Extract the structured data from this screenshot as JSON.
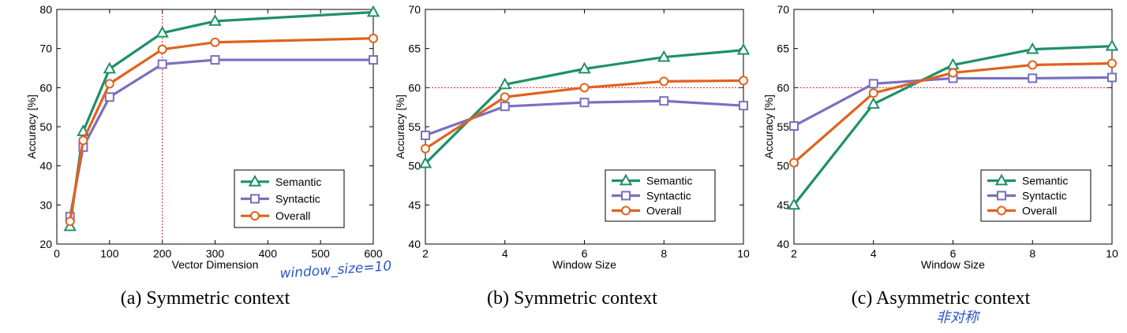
{
  "colors": {
    "semantic": "#1e9068",
    "syntactic": "#7a6fc0",
    "overall": "#e0621e",
    "reference": "#c0262c",
    "handwriting": "#2a58c8"
  },
  "chart_data": [
    {
      "type": "line",
      "caption": "(a) Symmetric context",
      "xlabel": "Vector Dimension",
      "ylabel": "Accuracy [%]",
      "xlim": [
        0,
        600
      ],
      "ylim": [
        20,
        80
      ],
      "xticks": [
        0,
        100,
        200,
        300,
        400,
        500,
        600
      ],
      "yticks": [
        20,
        30,
        40,
        50,
        60,
        70,
        80
      ],
      "grid": false,
      "legend_position": "lower-right",
      "reference_lines": {
        "x": 200,
        "y": null
      },
      "annotation": "window_size=10",
      "x": [
        25,
        50,
        100,
        200,
        300,
        600
      ],
      "series": [
        {
          "name": "Semantic",
          "marker": "triangle",
          "values": [
            24.5,
            48.8,
            64.8,
            74.0,
            77.0,
            79.3
          ]
        },
        {
          "name": "Syntactic",
          "marker": "square",
          "values": [
            27.0,
            44.8,
            57.6,
            66.0,
            67.1,
            67.1
          ]
        },
        {
          "name": "Overall",
          "marker": "circle",
          "values": [
            25.8,
            46.5,
            61.0,
            69.8,
            71.6,
            72.6
          ]
        }
      ]
    },
    {
      "type": "line",
      "caption": "(b) Symmetric context",
      "xlabel": "Window Size",
      "ylabel": "Accuracy [%]",
      "xlim": [
        2,
        10
      ],
      "ylim": [
        40,
        70
      ],
      "xticks": [
        2,
        4,
        6,
        8,
        10
      ],
      "yticks": [
        40,
        45,
        50,
        55,
        60,
        65,
        70
      ],
      "grid": false,
      "legend_position": "lower-right",
      "reference_lines": {
        "x": null,
        "y": 60
      },
      "annotation": "",
      "x": [
        2,
        4,
        6,
        8,
        10
      ],
      "series": [
        {
          "name": "Semantic",
          "marker": "triangle",
          "values": [
            50.3,
            60.4,
            62.4,
            63.9,
            64.8
          ]
        },
        {
          "name": "Syntactic",
          "marker": "square",
          "values": [
            53.9,
            57.6,
            58.1,
            58.3,
            57.7
          ]
        },
        {
          "name": "Overall",
          "marker": "circle",
          "values": [
            52.2,
            58.8,
            60.0,
            60.8,
            60.9
          ]
        }
      ]
    },
    {
      "type": "line",
      "caption": "(c) Asymmetric context",
      "xlabel": "Window Size",
      "ylabel": "Accuracy [%]",
      "xlim": [
        2,
        10
      ],
      "ylim": [
        40,
        70
      ],
      "xticks": [
        2,
        4,
        6,
        8,
        10
      ],
      "yticks": [
        40,
        45,
        50,
        55,
        60,
        65,
        70
      ],
      "grid": false,
      "legend_position": "lower-right",
      "reference_lines": {
        "x": null,
        "y": 60
      },
      "annotation": "非对称",
      "x": [
        2,
        4,
        6,
        8,
        10
      ],
      "series": [
        {
          "name": "Semantic",
          "marker": "triangle",
          "values": [
            45.0,
            57.9,
            62.9,
            64.9,
            65.3
          ]
        },
        {
          "name": "Syntactic",
          "marker": "square",
          "values": [
            55.1,
            60.5,
            61.2,
            61.2,
            61.3
          ]
        },
        {
          "name": "Overall",
          "marker": "circle",
          "values": [
            50.4,
            59.3,
            61.9,
            62.9,
            63.1
          ]
        }
      ]
    }
  ]
}
